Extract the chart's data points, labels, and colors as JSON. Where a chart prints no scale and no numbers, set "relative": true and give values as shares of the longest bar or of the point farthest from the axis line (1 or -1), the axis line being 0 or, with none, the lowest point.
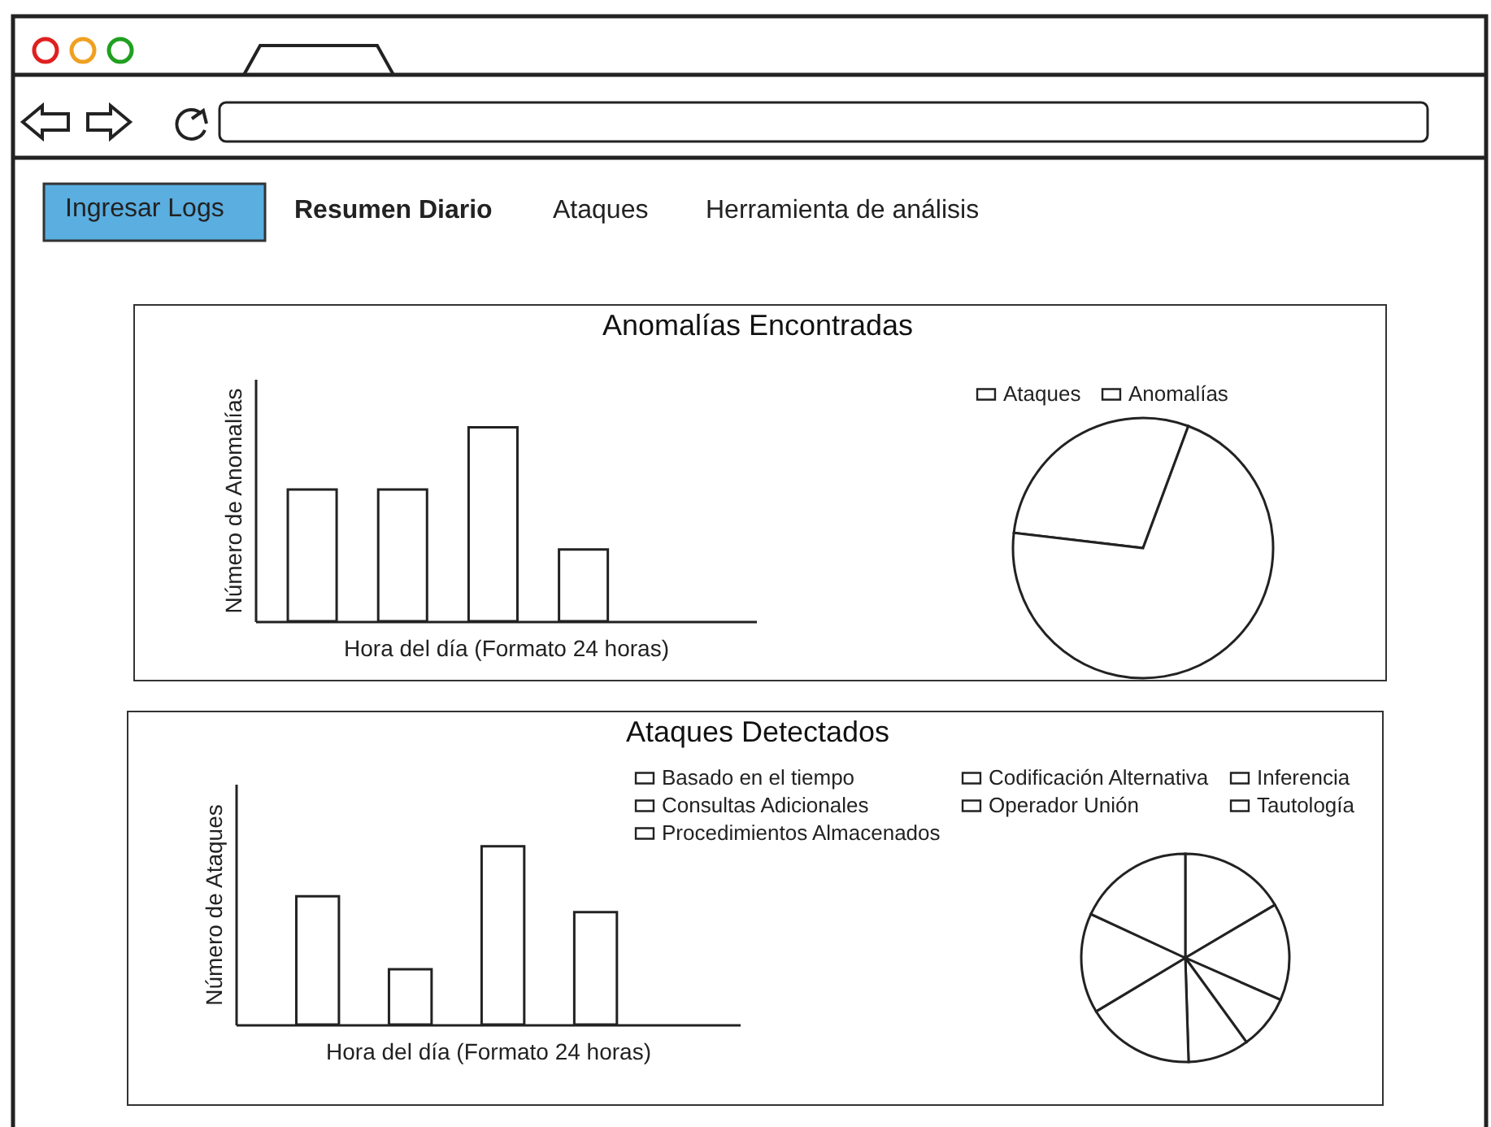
{
  "chart_data": [
    {
      "type": "bar",
      "title": "Anomalías Encontradas",
      "xlabel": "Hora del día (Formato 24 horas)",
      "ylabel": "Número de Anomalías",
      "categories": [
        null,
        null,
        null,
        null
      ],
      "values": [
        0.68,
        0.68,
        1,
        0.37
      ],
      "color": "#ffffff",
      "relative": true,
      "annotations": [
        "Ingresar Logs",
        "Resumen Diario",
        "Ataques",
        "Herramienta de análisis"
      ]
    },
    {
      "type": "pie",
      "categories": [
        "Ataques",
        "Anomalías"
      ],
      "values": [
        28.8,
        71.2
      ],
      "colors": [
        "#ffffff",
        "#ffffff"
      ],
      "legend": "top"
    },
    {
      "type": "bar",
      "title": "Ataques Detectados",
      "xlabel": "Hora del día (Formato 24 horas)",
      "ylabel": "Número de Ataques",
      "categories": [
        null,
        null,
        null,
        null
      ],
      "values": [
        0.72,
        0.31,
        1,
        0.63
      ],
      "color": "#ffffff",
      "relative": true
    },
    {
      "type": "pie",
      "categories": [
        "Basado en el tiempo",
        "Codificación Alternativa",
        "Inferencia",
        "Consultas Adicionales",
        "Operador Unión",
        "Tautología",
        "Procedimientos Almacenados"
      ],
      "values": [
        16.5,
        15.1,
        8.4,
        9.5,
        16.9,
        15.5,
        18.1
      ],
      "colors": [
        "#ffffff",
        "#ffffff",
        "#ffffff",
        "#ffffff",
        "#ffffff",
        "#ffffff",
        "#ffffff"
      ],
      "legend": "top"
    }
  ]
}
